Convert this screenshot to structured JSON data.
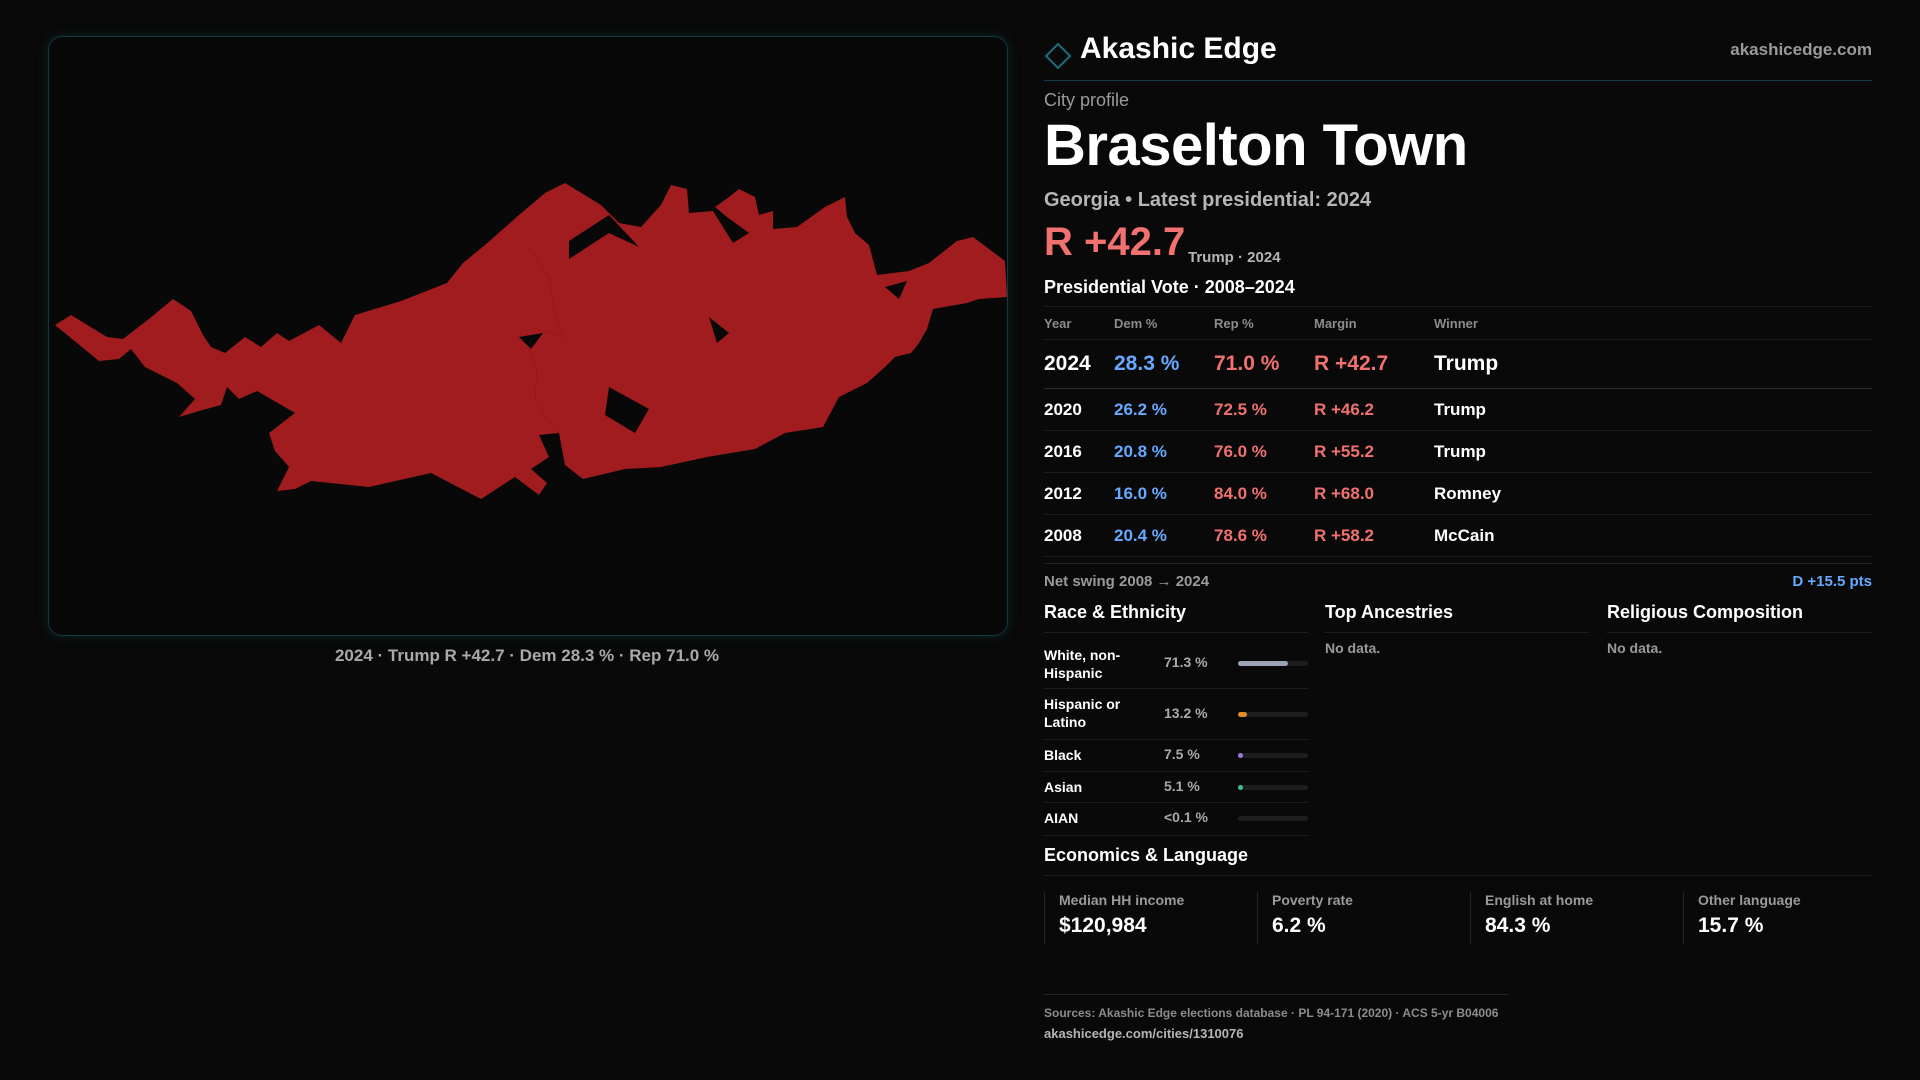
{
  "brand": {
    "name": "Akashic Edge",
    "url": "akashicedge.com",
    "accent": "#1f6b7a"
  },
  "profile": {
    "kicker": "City profile",
    "title": "Braselton Town",
    "subtitle": "Georgia • Latest presidential: 2024",
    "margin": "R +42.7",
    "margin_note": "Trump · 2024"
  },
  "map": {
    "caption": "2024 · Trump R +42.7 · Dem 28.3 % · Rep 71.0 %",
    "fill_color": "#a01c1e"
  },
  "vote": {
    "heading": "Presidential Vote · 2008–2024",
    "columns": [
      "Year",
      "Dem %",
      "Rep %",
      "Margin",
      "Winner"
    ],
    "rows": [
      {
        "year": "2024",
        "dem": "28.3 %",
        "rep": "71.0 %",
        "margin": "R +42.7",
        "winner": "Trump"
      },
      {
        "year": "2020",
        "dem": "26.2 %",
        "rep": "72.5 %",
        "margin": "R +46.2",
        "winner": "Trump"
      },
      {
        "year": "2016",
        "dem": "20.8 %",
        "rep": "76.0 %",
        "margin": "R +55.2",
        "winner": "Trump"
      },
      {
        "year": "2012",
        "dem": "16.0 %",
        "rep": "84.0 %",
        "margin": "R +68.0",
        "winner": "Romney"
      },
      {
        "year": "2008",
        "dem": "20.4 %",
        "rep": "78.6 %",
        "margin": "R +58.2",
        "winner": "McCain"
      }
    ],
    "colors": {
      "dem": "#66a9ff",
      "rep": "#f0716f"
    }
  },
  "swing": {
    "label": "Net swing 2008 → 2024",
    "value": "D +15.5 pts"
  },
  "race": {
    "title": "Race & Ethnicity",
    "items": [
      {
        "label": "White, non-Hispanic",
        "value": "71.3 %",
        "share": 0.713,
        "color": "#9aa3b2"
      },
      {
        "label": "Hispanic or Latino",
        "value": "13.2 %",
        "share": 0.132,
        "color": "#e08a2a"
      },
      {
        "label": "Black",
        "value": "7.5 %",
        "share": 0.075,
        "color": "#9a7ae0"
      },
      {
        "label": "Asian",
        "value": "5.1 %",
        "share": 0.051,
        "color": "#3fbf8a"
      },
      {
        "label": "AIAN",
        "value": "<0.1 %",
        "share": 0.0,
        "color": "#9aa3b2"
      }
    ]
  },
  "ancestries": {
    "title": "Top Ancestries",
    "empty": "No data."
  },
  "religion": {
    "title": "Religious Composition",
    "empty": "No data."
  },
  "economics": {
    "title": "Economics & Language",
    "cells": [
      {
        "label": "Median HH income",
        "value": "$120,984"
      },
      {
        "label": "Poverty rate",
        "value": "6.2 %"
      },
      {
        "label": "English at home",
        "value": "84.3 %"
      },
      {
        "label": "Other language",
        "value": "15.7 %"
      }
    ]
  },
  "footer": {
    "sources": "Sources: Akashic Edge elections database · PL 94-171 (2020) · ACS 5-yr B04006",
    "link": "akashicedge.com/cities/1310076"
  }
}
